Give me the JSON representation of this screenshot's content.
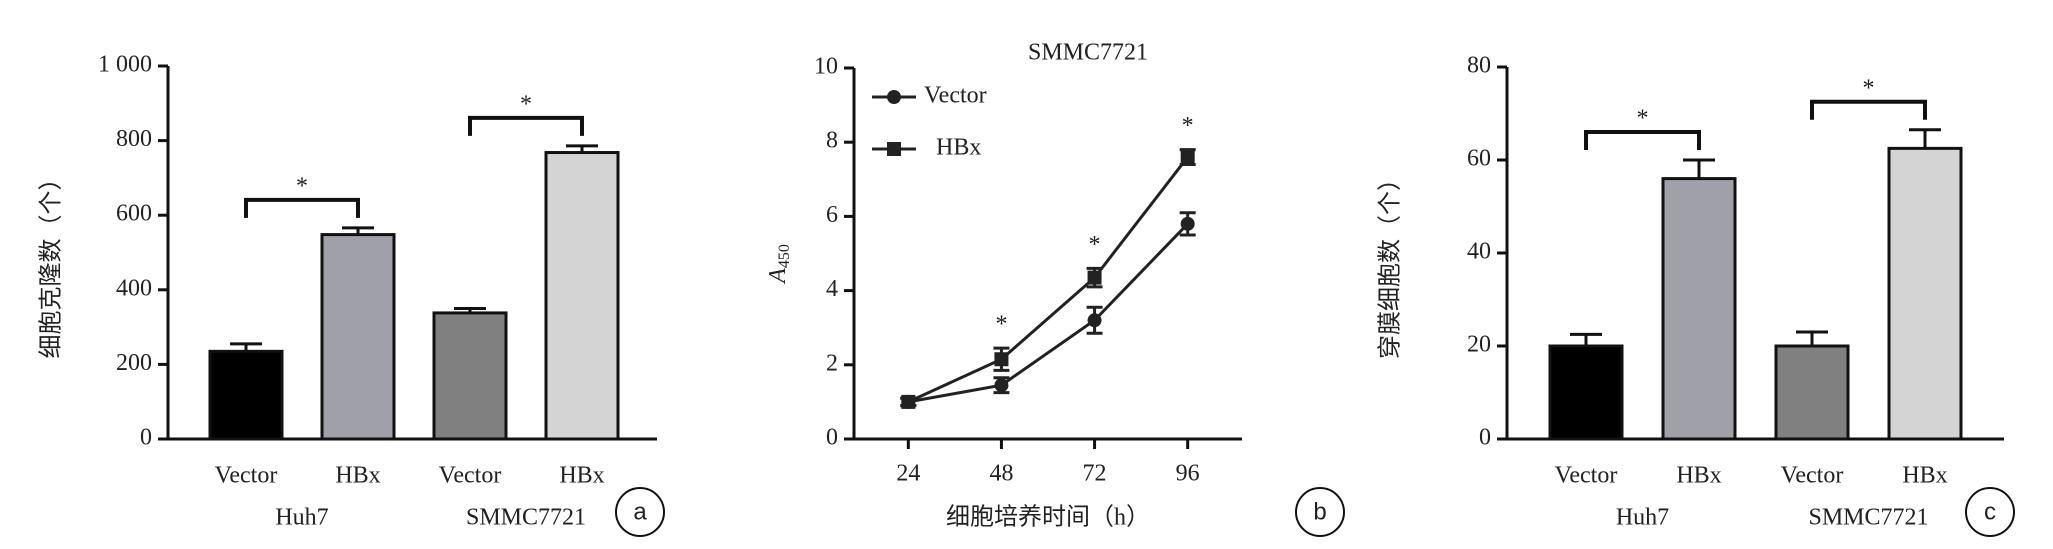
{
  "chart_data": [
    {
      "type": "bar",
      "ylabel": "细胞克隆数（个）",
      "panel": "a",
      "categories": [
        "Vector",
        "HBx",
        "Vector",
        "HBx"
      ],
      "groups": [
        "Huh7",
        "SMMC7721"
      ],
      "values": [
        235,
        548,
        338,
        768
      ],
      "errors": [
        20,
        18,
        12,
        18
      ],
      "colors": [
        "#000000",
        "#a0a0a8",
        "#808080",
        "#d4d4d4"
      ],
      "ylim": [
        0,
        1000
      ],
      "yticks": [
        0,
        200,
        400,
        600,
        800,
        {
          "value": 1000,
          "label": "1 000"
        }
      ],
      "annotations": [
        "*",
        "*"
      ]
    },
    {
      "type": "line",
      "title": "SMMC7721",
      "panel": "b",
      "xlabel": "细胞培养时间（h）",
      "ylabel": {
        "text": "A",
        "sub": "450"
      },
      "x": [
        24,
        48,
        72,
        96
      ],
      "xlim": [
        10,
        110
      ],
      "xticks": [
        24,
        48,
        72,
        96
      ],
      "ylim": [
        0,
        10
      ],
      "yticks": [
        0,
        2,
        4,
        6,
        8,
        10
      ],
      "series": [
        {
          "name": "Vector",
          "marker": "circle",
          "color": "#222222",
          "values": [
            1.0,
            1.45,
            3.2,
            5.8
          ],
          "errors": [
            0.1,
            0.2,
            0.35,
            0.3
          ]
        },
        {
          "name": "HBx",
          "marker": "square",
          "color": "#222222",
          "values": [
            1.0,
            2.15,
            4.35,
            7.6
          ],
          "errors": [
            0.1,
            0.3,
            0.25,
            0.2
          ]
        }
      ],
      "annotations": [
        "*",
        "*",
        "*"
      ]
    },
    {
      "type": "bar",
      "ylabel": "穿膜细胞数（个）",
      "panel": "c",
      "categories": [
        "Vector",
        "HBx",
        "Vector",
        "HBx"
      ],
      "groups": [
        "Huh7",
        "SMMC7721"
      ],
      "values": [
        20,
        56,
        20,
        62.5
      ],
      "errors": [
        2.5,
        4,
        3,
        4
      ],
      "colors": [
        "#000000",
        "#a0a0a8",
        "#808080",
        "#d4d4d4"
      ],
      "ylim": [
        0,
        80
      ],
      "yticks": [
        0,
        20,
        40,
        60,
        80
      ],
      "annotations": [
        "*",
        "*"
      ]
    }
  ]
}
